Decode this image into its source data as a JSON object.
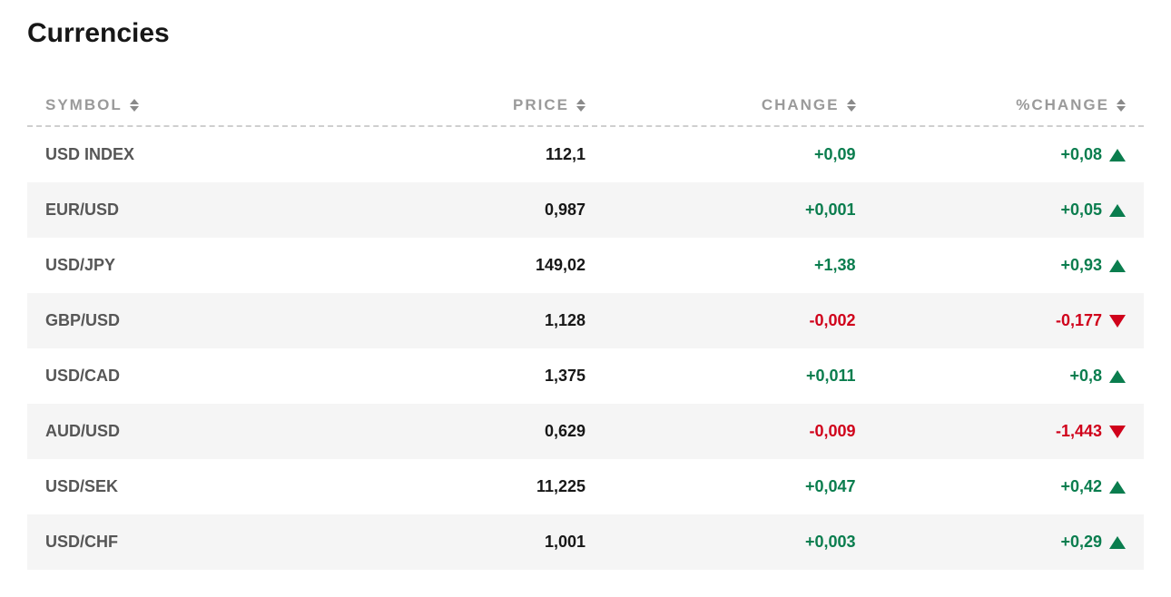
{
  "title": "Currencies",
  "colors": {
    "positive": "#0a7d4e",
    "negative": "#d0021b",
    "header_text": "#9a9a9a",
    "symbol_text": "#565656",
    "price_text": "#171717",
    "row_even_bg": "#ffffff",
    "row_odd_bg": "#f5f5f5",
    "dashed_border": "#cfcfcf"
  },
  "columns": {
    "symbol": "SYMBOL",
    "price": "PRICE",
    "change": "CHANGE",
    "pct_change": "%CHANGE"
  },
  "rows": [
    {
      "symbol": "USD INDEX",
      "price": "112,1",
      "change": "+0,09",
      "pct_change": "+0,08",
      "direction": "up"
    },
    {
      "symbol": "EUR/USD",
      "price": "0,987",
      "change": "+0,001",
      "pct_change": "+0,05",
      "direction": "up"
    },
    {
      "symbol": "USD/JPY",
      "price": "149,02",
      "change": "+1,38",
      "pct_change": "+0,93",
      "direction": "up"
    },
    {
      "symbol": "GBP/USD",
      "price": "1,128",
      "change": "-0,002",
      "pct_change": "-0,177",
      "direction": "down"
    },
    {
      "symbol": "USD/CAD",
      "price": "1,375",
      "change": "+0,011",
      "pct_change": "+0,8",
      "direction": "up"
    },
    {
      "symbol": "AUD/USD",
      "price": "0,629",
      "change": "-0,009",
      "pct_change": "-1,443",
      "direction": "down"
    },
    {
      "symbol": "USD/SEK",
      "price": "11,225",
      "change": "+0,047",
      "pct_change": "+0,42",
      "direction": "up"
    },
    {
      "symbol": "USD/CHF",
      "price": "1,001",
      "change": "+0,003",
      "pct_change": "+0,29",
      "direction": "up"
    }
  ]
}
